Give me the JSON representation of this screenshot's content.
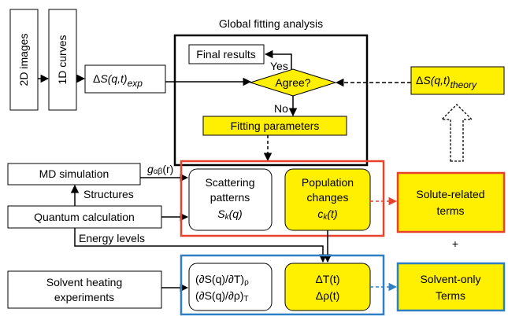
{
  "title": "Global fitting analysis",
  "inputs": {
    "images": "2D images",
    "curves": "1D curves"
  },
  "experiment": {
    "delta": "Δ",
    "symbol": "S(q,t)",
    "sub": "exp"
  },
  "theory": {
    "delta": "Δ",
    "symbol": "S(q,t)",
    "sub": "theory"
  },
  "fitting": {
    "final": "Final results",
    "yes": "Yes",
    "decision": "Agree?",
    "no": "No",
    "parameters": "Fitting parameters"
  },
  "md": {
    "label": "MD simulation",
    "output": {
      "symbol": "g",
      "sub": "αβ",
      "arg": "(r)"
    }
  },
  "structures": "Structures",
  "quantum": "Quantum calculation",
  "energy": "Energy levels",
  "solvent": {
    "line1": "Solvent heating",
    "line2": "experiments"
  },
  "scattering": {
    "line1": "Scattering",
    "line2": "patterns",
    "symbol": "S",
    "sub": "k",
    "arg": "(q)"
  },
  "population": {
    "line1": "Population",
    "line2": "changes",
    "symbol": "c",
    "sub": "k",
    "arg": "(t)"
  },
  "derivatives": [
    {
      "main": "(∂S(q)/∂T)",
      "sub": "ρ"
    },
    {
      "main": "(∂S(q)/∂ρ)",
      "sub": "T"
    }
  ],
  "solvent_params": [
    "ΔT(t)",
    "Δρ(t)"
  ],
  "solute_terms": {
    "line1": "Solute-related",
    "line2": "terms"
  },
  "plus": "+",
  "solvent_terms": {
    "line1": "Solvent-only",
    "line2": "Terms"
  }
}
